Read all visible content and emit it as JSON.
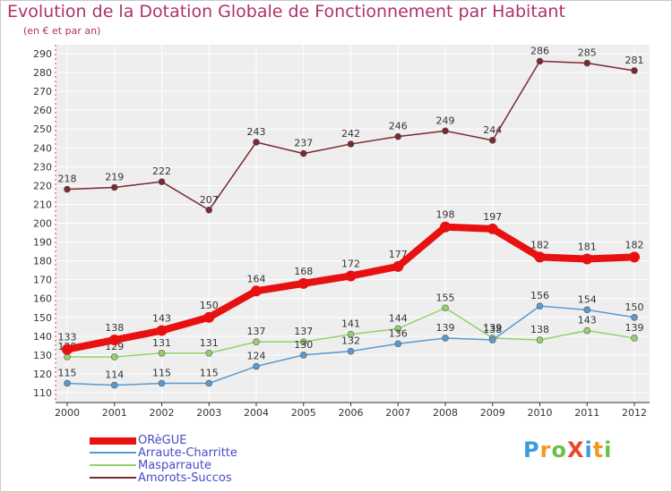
{
  "header": {
    "title": "Evolution de la Dotation Globale de Fonctionnement par Habitant",
    "subtitle": "(en € et par an)"
  },
  "brand": {
    "text": "ProXiti",
    "letters": [
      "P",
      "r",
      "o",
      "X",
      "i",
      "t",
      "i"
    ],
    "colors": [
      "#3a9be0",
      "#f39a1e",
      "#6cc04a",
      "#e8472a",
      "#3a9be0",
      "#f39a1e",
      "#6cc04a"
    ]
  },
  "chart_data": {
    "type": "line",
    "title": "Evolution de la Dotation Globale de Fonctionnement par Habitant",
    "subtitle": "(en € et par an)",
    "xlabel": "",
    "ylabel": "",
    "ylim": [
      110,
      290
    ],
    "yticks": [
      110,
      120,
      130,
      140,
      150,
      160,
      170,
      180,
      190,
      200,
      210,
      220,
      230,
      240,
      250,
      260,
      270,
      280,
      290
    ],
    "categories": [
      "2000",
      "2001",
      "2002",
      "2003",
      "2004",
      "2005",
      "2006",
      "2007",
      "2008",
      "2009",
      "2010",
      "2011",
      "2012"
    ],
    "grid": true,
    "legend_position": "bottom-left",
    "series": [
      {
        "name": "Amorots-Succos",
        "color": "#7a2a30",
        "values": [
          218,
          219,
          222,
          207,
          243,
          237,
          242,
          246,
          249,
          244,
          286,
          285,
          281
        ]
      },
      {
        "name": "Masparraute",
        "color": "#94d16a",
        "values": [
          129,
          129,
          131,
          131,
          137,
          137,
          141,
          144,
          155,
          139,
          138,
          143,
          139
        ]
      },
      {
        "name": "Arraute-Charritte",
        "color": "#5a9ad0",
        "values": [
          115,
          114,
          115,
          115,
          124,
          130,
          132,
          136,
          139,
          138,
          156,
          154,
          150
        ]
      },
      {
        "name": "ORèGUE",
        "color": "#e81010",
        "values": [
          133,
          138,
          143,
          150,
          164,
          168,
          172,
          177,
          198,
          197,
          182,
          181,
          182
        ]
      }
    ]
  },
  "legend": {
    "items": [
      {
        "label": "ORèGUE",
        "color": "#e81010"
      },
      {
        "label": "Arraute-Charritte",
        "color": "#5a9ad0"
      },
      {
        "label": "Masparraute",
        "color": "#94d16a"
      },
      {
        "label": "Amorots-Succos",
        "color": "#7a2a30"
      }
    ]
  }
}
